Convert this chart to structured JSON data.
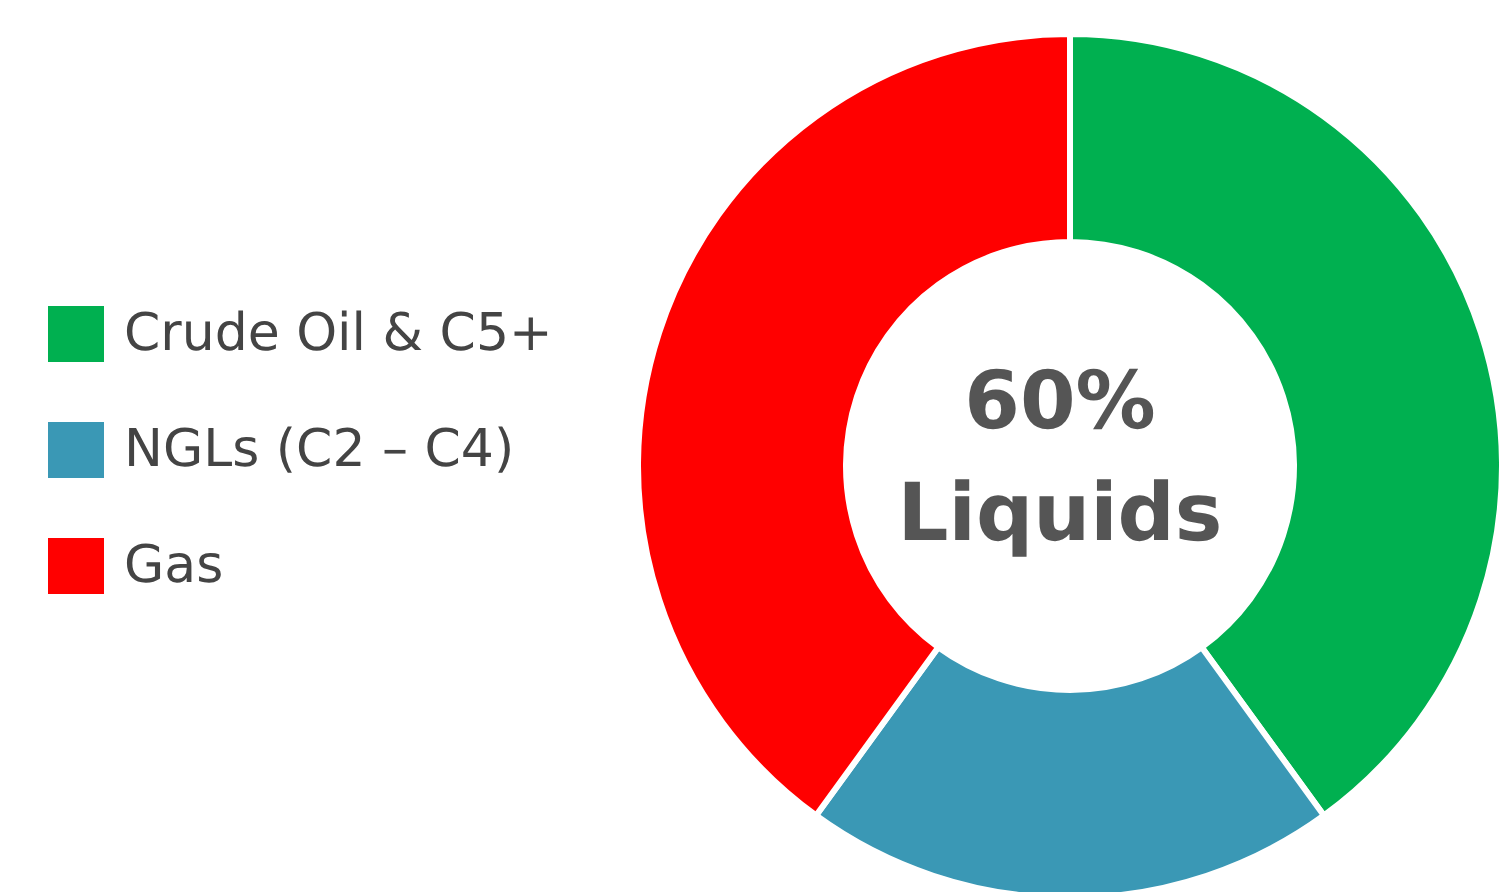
{
  "chart_data": {
    "type": "donut",
    "categories": [
      "Crude Oil & C5+",
      "NGLs (C2 – C4)",
      "Gas"
    ],
    "values": [
      40,
      20,
      40
    ],
    "colors": [
      "#00b050",
      "#3a98b5",
      "#ff0000"
    ],
    "legend": "left",
    "annotations": [
      "60%",
      "Liquids"
    ]
  }
}
